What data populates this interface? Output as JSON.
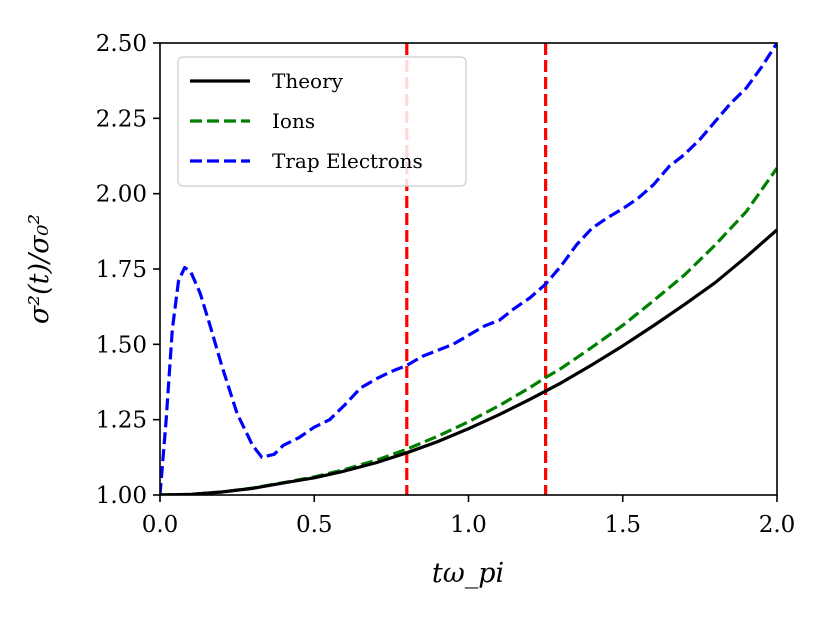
{
  "chart_data": {
    "type": "line",
    "title": "",
    "xlabel": "tω_pi",
    "ylabel": "σ²(t)/σ₀²",
    "xlim": [
      0.0,
      2.0
    ],
    "ylim": [
      1.0,
      2.5
    ],
    "xticks": [
      "0.0",
      "0.5",
      "1.0",
      "1.5",
      "2.0"
    ],
    "yticks": [
      "1.00",
      "1.25",
      "1.50",
      "1.75",
      "2.00",
      "2.25",
      "2.50"
    ],
    "grid": false,
    "legend_position": "top-left",
    "series": [
      {
        "name": "Theory",
        "color": "#000000",
        "style": "solid",
        "x": [
          0.0,
          0.1,
          0.2,
          0.3,
          0.4,
          0.5,
          0.6,
          0.7,
          0.8,
          0.9,
          1.0,
          1.1,
          1.2,
          1.25,
          1.3,
          1.4,
          1.5,
          1.6,
          1.7,
          1.8,
          1.9,
          2.0
        ],
        "values": [
          1.0,
          1.002,
          1.01,
          1.022,
          1.04,
          1.057,
          1.08,
          1.107,
          1.14,
          1.177,
          1.22,
          1.267,
          1.318,
          1.345,
          1.372,
          1.432,
          1.495,
          1.562,
          1.632,
          1.705,
          1.79,
          1.88
        ]
      },
      {
        "name": "Ions",
        "color": "#008000",
        "style": "dashed",
        "x": [
          0.0,
          0.1,
          0.2,
          0.3,
          0.4,
          0.5,
          0.6,
          0.7,
          0.8,
          0.9,
          1.0,
          1.1,
          1.2,
          1.25,
          1.3,
          1.4,
          1.5,
          1.6,
          1.7,
          1.8,
          1.9,
          2.0
        ],
        "values": [
          1.0,
          1.002,
          1.01,
          1.023,
          1.041,
          1.06,
          1.085,
          1.115,
          1.152,
          1.195,
          1.243,
          1.297,
          1.357,
          1.39,
          1.42,
          1.49,
          1.563,
          1.645,
          1.73,
          1.83,
          1.94,
          2.085
        ]
      },
      {
        "name": "Trap Electrons",
        "color": "#0000ff",
        "style": "dashed",
        "x": [
          0.0,
          0.02,
          0.04,
          0.06,
          0.08,
          0.1,
          0.13,
          0.16,
          0.2,
          0.25,
          0.3,
          0.33,
          0.37,
          0.4,
          0.45,
          0.5,
          0.55,
          0.6,
          0.65,
          0.7,
          0.75,
          0.8,
          0.85,
          0.9,
          0.95,
          1.0,
          1.05,
          1.1,
          1.15,
          1.2,
          1.25,
          1.3,
          1.35,
          1.4,
          1.45,
          1.5,
          1.55,
          1.6,
          1.65,
          1.7,
          1.75,
          1.8,
          1.85,
          1.9,
          1.95,
          2.0
        ],
        "values": [
          1.0,
          1.25,
          1.55,
          1.71,
          1.755,
          1.74,
          1.67,
          1.57,
          1.43,
          1.27,
          1.165,
          1.125,
          1.135,
          1.165,
          1.19,
          1.225,
          1.25,
          1.3,
          1.355,
          1.385,
          1.41,
          1.43,
          1.46,
          1.48,
          1.5,
          1.53,
          1.56,
          1.58,
          1.62,
          1.655,
          1.7,
          1.76,
          1.83,
          1.885,
          1.92,
          1.95,
          1.985,
          2.03,
          2.09,
          2.13,
          2.18,
          2.24,
          2.3,
          2.35,
          2.42,
          2.5
        ]
      }
    ],
    "vlines": [
      {
        "x": 0.8,
        "color": "#ff0000",
        "style": "dashed"
      },
      {
        "x": 1.25,
        "color": "#ff0000",
        "style": "dashed"
      }
    ]
  }
}
